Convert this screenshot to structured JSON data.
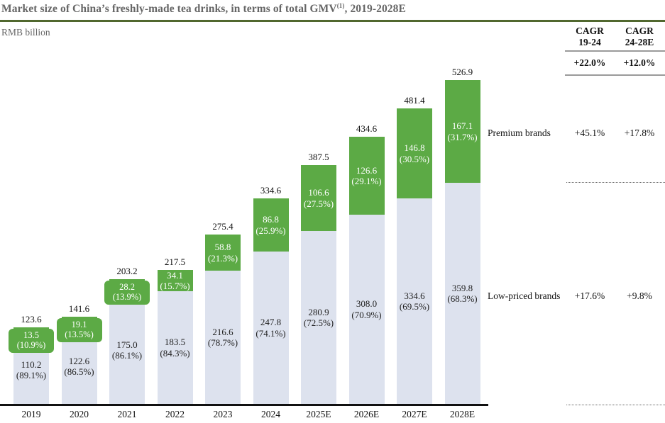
{
  "title": {
    "text": "Market size of China’s freshly-made tea drinks, in terms of total GMV",
    "superscript": "(1)",
    "suffix": ", 2019-2028E"
  },
  "units_label": "RMB billion",
  "colors": {
    "premium_green": "#5caa45",
    "low_priced_gray": "#dde2ee",
    "title_gray": "#666666",
    "title_rule_green": "#51682f",
    "axis_black": "#111111"
  },
  "chart_data": {
    "type": "bar",
    "stacked": true,
    "title": "Market size of China’s freshly-made tea drinks, in terms of total GMV(1), 2019-2028E",
    "xlabel": "",
    "ylabel": "RMB billion",
    "ylim": [
      0,
      560
    ],
    "grid": false,
    "legend_position": "right-row-labels",
    "categories": [
      "2019",
      "2020",
      "2021",
      "2022",
      "2023",
      "2024",
      "2025E",
      "2026E",
      "2027E",
      "2028E"
    ],
    "totals": [
      123.6,
      141.6,
      203.2,
      217.5,
      275.4,
      334.6,
      387.5,
      434.6,
      481.4,
      526.9
    ],
    "series": [
      {
        "name": "Low-priced brands",
        "color": "#dde2ee",
        "values": [
          110.2,
          122.6,
          175.0,
          183.5,
          216.6,
          247.8,
          280.9,
          308.0,
          334.6,
          359.8
        ],
        "share_pct": [
          "89.1%",
          "86.5%",
          "86.1%",
          "84.3%",
          "78.7%",
          "74.1%",
          "72.5%",
          "70.9%",
          "69.5%",
          "68.3%"
        ]
      },
      {
        "name": "Premium brands",
        "color": "#5caa45",
        "values": [
          13.5,
          19.1,
          28.2,
          34.1,
          58.8,
          86.8,
          106.6,
          126.6,
          146.8,
          167.1
        ],
        "share_pct": [
          "10.9%",
          "13.5%",
          "13.9%",
          "15.7%",
          "21.3%",
          "25.9%",
          "27.5%",
          "29.1%",
          "30.5%",
          "31.7%"
        ]
      }
    ]
  },
  "cagr_panel": {
    "headers": [
      {
        "line1": "CAGR",
        "line2": "19-24"
      },
      {
        "line1": "CAGR",
        "line2": "24-28E"
      }
    ],
    "total_row": [
      "+22.0%",
      "+12.0%"
    ],
    "rows": [
      {
        "label": "Premium brands",
        "values": [
          "+45.1%",
          "+17.8%"
        ]
      },
      {
        "label": "Low-priced brands",
        "values": [
          "+17.6%",
          "+9.8%"
        ]
      }
    ]
  }
}
